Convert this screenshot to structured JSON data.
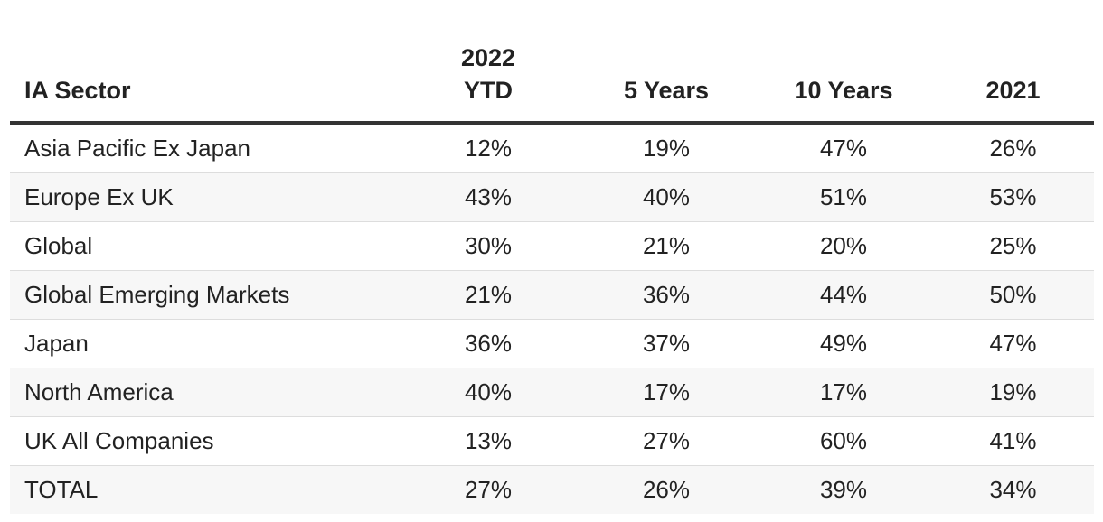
{
  "table": {
    "columns": [
      "IA Sector",
      "2022\nYTD",
      "5 Years",
      "10 Years",
      "2021"
    ],
    "rows": [
      {
        "sector": "Asia Pacific Ex Japan",
        "ytd_2022": "12%",
        "five_years": "19%",
        "ten_years": "47%",
        "y2021": "26%"
      },
      {
        "sector": "Europe Ex UK",
        "ytd_2022": "43%",
        "five_years": "40%",
        "ten_years": "51%",
        "y2021": "53%"
      },
      {
        "sector": "Global",
        "ytd_2022": "30%",
        "five_years": "21%",
        "ten_years": "20%",
        "y2021": "25%"
      },
      {
        "sector": "Global Emerging Markets",
        "ytd_2022": "21%",
        "five_years": "36%",
        "ten_years": "44%",
        "y2021": "50%"
      },
      {
        "sector": "Japan",
        "ytd_2022": "36%",
        "five_years": "37%",
        "ten_years": "49%",
        "y2021": "47%"
      },
      {
        "sector": "North America",
        "ytd_2022": "40%",
        "five_years": "17%",
        "ten_years": "17%",
        "y2021": "19%"
      },
      {
        "sector": "UK All Companies",
        "ytd_2022": "13%",
        "five_years": "27%",
        "ten_years": "60%",
        "y2021": "41%"
      },
      {
        "sector": "TOTAL",
        "ytd_2022": "27%",
        "five_years": "26%",
        "ten_years": "39%",
        "y2021": "34%"
      }
    ]
  }
}
